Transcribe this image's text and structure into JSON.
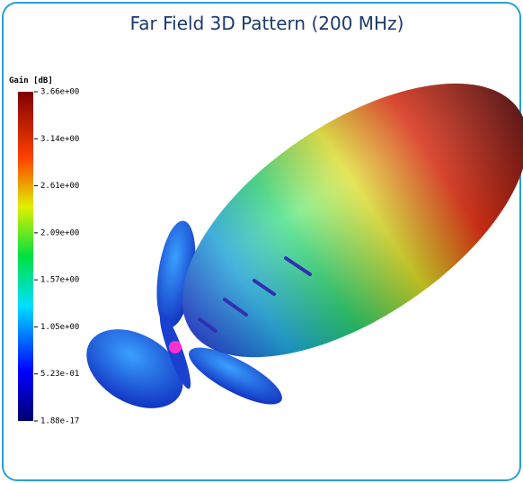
{
  "header": {
    "title": "Far Field 3D Pattern (200 MHz)"
  },
  "colorbar": {
    "title": "Gain [dB]",
    "labels": [
      "3.66e+00",
      "3.14e+00",
      "2.61e+00",
      "2.09e+00",
      "1.57e+00",
      "1.05e+00",
      "5.23e-01",
      "1.88e-17"
    ]
  }
}
